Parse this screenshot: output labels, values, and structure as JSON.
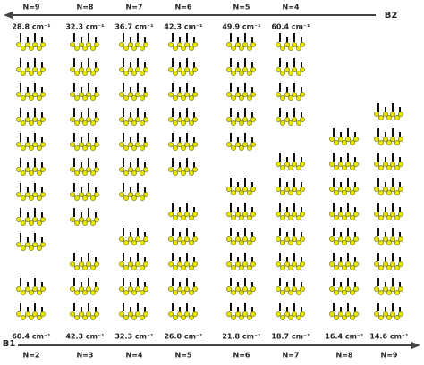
{
  "top": {
    "axis_label": "B2",
    "columns": [
      {
        "n": "N=9",
        "freq": "28.8 cm⁻¹"
      },
      {
        "n": "N=8",
        "freq": "32.3 cm⁻¹"
      },
      {
        "n": "N=7",
        "freq": "36.7 cm⁻¹"
      },
      {
        "n": "N=6",
        "freq": "42.3 cm⁻¹"
      },
      {
        "n": "N=5",
        "freq": "49.9 cm⁻¹"
      },
      {
        "n": "N=4",
        "freq": "60.4 cm⁻¹"
      }
    ]
  },
  "bottom": {
    "axis_label": "B1",
    "columns": [
      {
        "freq": "60.4 cm⁻¹",
        "n": "N=2"
      },
      {
        "freq": "42.3 cm⁻¹",
        "n": "N=3"
      },
      {
        "freq": "32.3 cm⁻¹",
        "n": "N=4"
      },
      {
        "freq": "26.0 cm⁻¹",
        "n": "N=5"
      },
      {
        "freq": "21.8 cm⁻¹",
        "n": "N=6"
      },
      {
        "freq": "18.7 cm⁻¹",
        "n": "N=7"
      },
      {
        "freq": "16.4 cm⁻¹",
        "n": "N=8"
      },
      {
        "freq": "14.6 cm⁻¹",
        "n": "N=9"
      }
    ]
  }
}
